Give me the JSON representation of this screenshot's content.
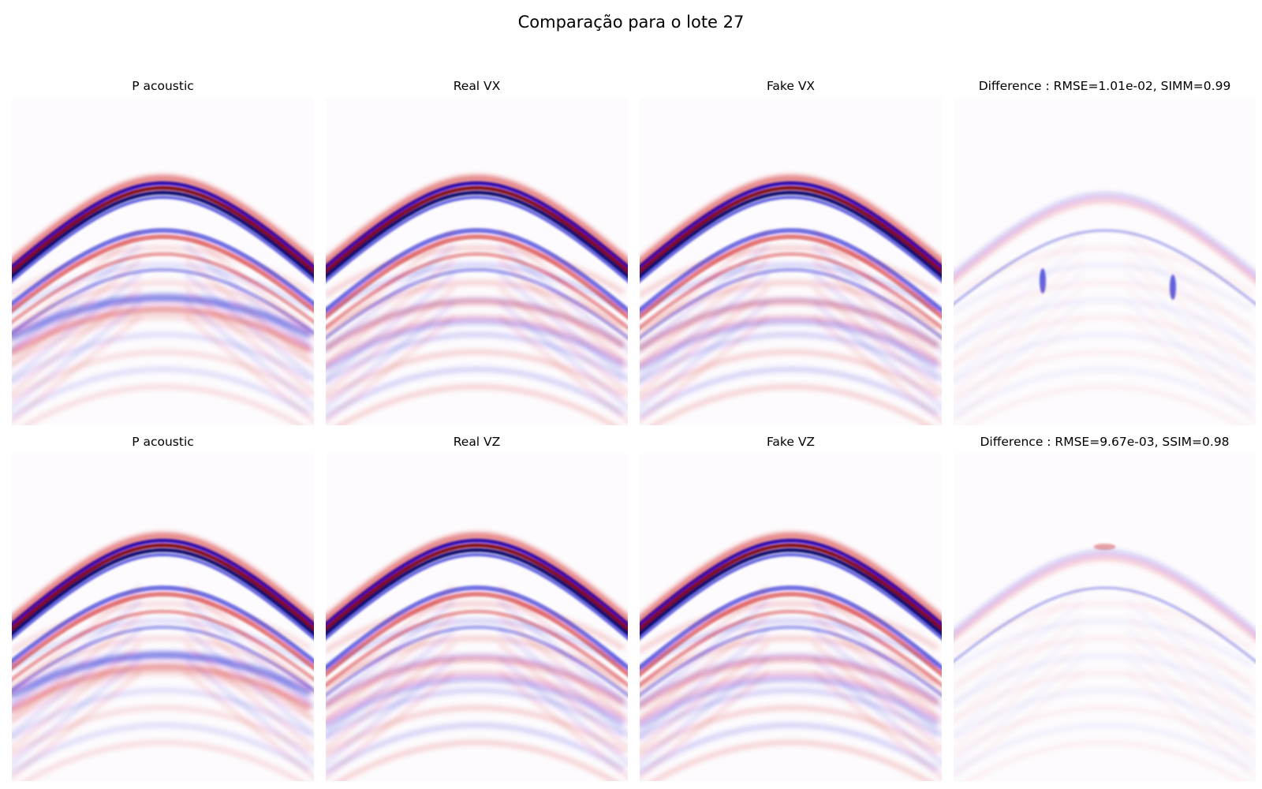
{
  "figure": {
    "suptitle": "Comparação para o lote 27"
  },
  "colors": {
    "positive": "#cc0000",
    "negative": "#0000cc",
    "peak_positive": "#7a0000",
    "peak_negative": "#000066",
    "background": "#ffffff"
  },
  "chart_data": [
    {
      "type": "heatmap",
      "title": "P acoustic",
      "colormap": "seismic",
      "axes": "off",
      "row": 1,
      "col": 1
    },
    {
      "type": "heatmap",
      "title": "Real VX",
      "colormap": "seismic",
      "axes": "off",
      "row": 1,
      "col": 2
    },
    {
      "type": "heatmap",
      "title": "Fake VX",
      "colormap": "seismic",
      "axes": "off",
      "row": 1,
      "col": 3
    },
    {
      "type": "heatmap",
      "title": "Difference : RMSE=1.01e-02, SIMM=0.99",
      "colormap": "seismic",
      "axes": "off",
      "row": 1,
      "col": 4,
      "rmse": 0.0101,
      "simm": 0.99
    },
    {
      "type": "heatmap",
      "title": "P acoustic",
      "colormap": "seismic",
      "axes": "off",
      "row": 2,
      "col": 1
    },
    {
      "type": "heatmap",
      "title": "Real VZ",
      "colormap": "seismic",
      "axes": "off",
      "row": 2,
      "col": 2
    },
    {
      "type": "heatmap",
      "title": "Fake VZ",
      "colormap": "seismic",
      "axes": "off",
      "row": 2,
      "col": 3
    },
    {
      "type": "heatmap",
      "title": "Difference : RMSE=9.67e-03, SSIM=0.98",
      "colormap": "seismic",
      "axes": "off",
      "row": 2,
      "col": 4,
      "rmse": 0.00967,
      "ssim": 0.98
    }
  ]
}
